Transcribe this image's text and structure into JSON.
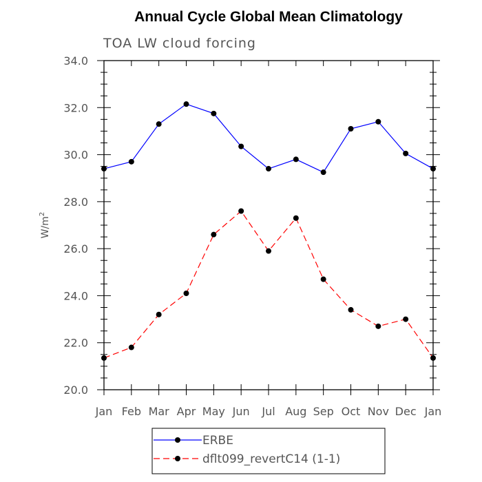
{
  "chart_data": {
    "type": "line",
    "title": "Annual Cycle Global Mean Climatology",
    "subtitle": "TOA LW cloud forcing",
    "xlabel": "",
    "ylabel": "W/m",
    "ylabel_sup": "2",
    "categories": [
      "Jan",
      "Feb",
      "Mar",
      "Apr",
      "May",
      "Jun",
      "Jul",
      "Aug",
      "Sep",
      "Oct",
      "Nov",
      "Dec",
      "Jan"
    ],
    "ylim": [
      20.0,
      34.0
    ],
    "yticks": [
      "20.0",
      "22.0",
      "24.0",
      "26.0",
      "28.0",
      "30.0",
      "32.0",
      "34.0"
    ],
    "grid": false,
    "legend_position": "bottom-center",
    "series": [
      {
        "name": "ERBE",
        "color": "#0000ff",
        "dash": "solid",
        "values": [
          29.4,
          29.7,
          31.3,
          32.15,
          31.75,
          30.35,
          29.4,
          29.8,
          29.25,
          31.1,
          31.4,
          30.05,
          29.4
        ]
      },
      {
        "name": "dflt099_revertC14 (1-1)",
        "color": "#ff0000",
        "dash": "dashed",
        "values": [
          21.35,
          21.8,
          23.2,
          24.1,
          26.6,
          27.6,
          25.9,
          27.3,
          24.7,
          23.4,
          22.7,
          23.0,
          21.35
        ]
      }
    ]
  }
}
